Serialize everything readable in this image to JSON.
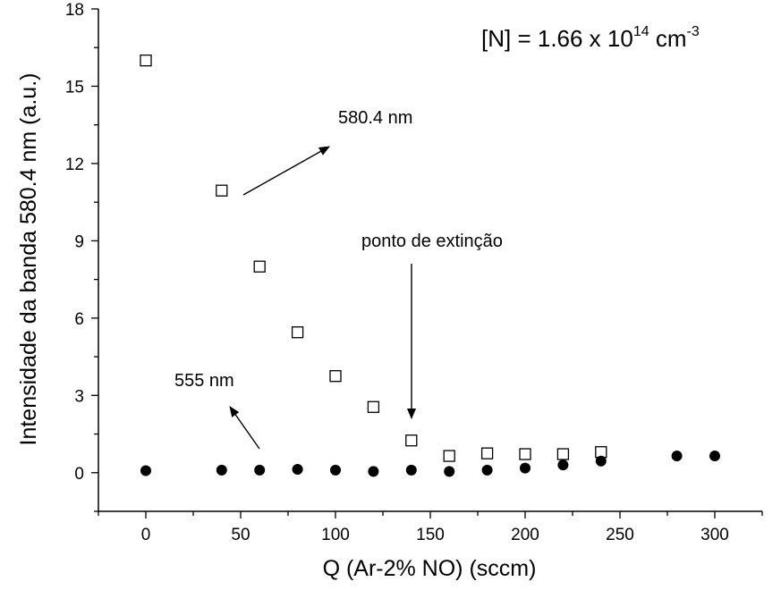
{
  "chart_data": {
    "type": "scatter",
    "xlabel": "Q (Ar-2% NO) (sccm)",
    "ylabel": "Intensidade da banda 580.4 nm (a.u.)",
    "xlim": [
      -25,
      325
    ],
    "ylim": [
      -1.5,
      18
    ],
    "x_ticks": [
      0,
      50,
      100,
      150,
      200,
      250,
      300
    ],
    "y_ticks": [
      0,
      3,
      6,
      9,
      12,
      15,
      18
    ],
    "grid": false,
    "series": [
      {
        "marker": "open-square",
        "x": [
          0,
          40,
          60,
          80,
          100,
          120,
          140,
          160,
          180,
          200,
          220,
          240
        ],
        "y": [
          16.0,
          10.95,
          8.0,
          5.45,
          3.75,
          2.55,
          1.25,
          0.65,
          0.75,
          0.72,
          0.72,
          0.8
        ]
      },
      {
        "marker": "filled-circle",
        "x": [
          0,
          40,
          60,
          80,
          100,
          120,
          140,
          160,
          180,
          200,
          220,
          240,
          280,
          300
        ],
        "y": [
          0.08,
          0.1,
          0.1,
          0.13,
          0.1,
          0.05,
          0.1,
          0.05,
          0.1,
          0.18,
          0.3,
          0.45,
          0.65,
          0.65
        ]
      }
    ],
    "annotations": {
      "concentration": {
        "prefix": "[N] = 1.66 x 10",
        "exp": "14",
        "unit": " cm",
        "unit_exp": "-3"
      },
      "label_580": "580.4 nm",
      "label_555": "555 nm",
      "label_extincao": "ponto de extinção"
    }
  }
}
